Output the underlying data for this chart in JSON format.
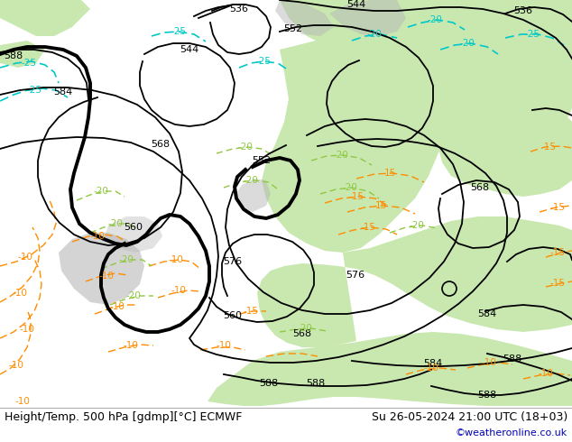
{
  "title_left": "Height/Temp. 500 hPa [gdmp][°C] ECMWF",
  "title_right": "Su 26-05-2024 21:00 UTC (18+03)",
  "watermark": "©weatheronline.co.uk",
  "bg_color": "#d8d8d8",
  "green_color": "#c8e8b0",
  "land_gray": "#b8b8b8",
  "sea_color": "#d8d8d8",
  "black": "#000000",
  "orange": "#ff8c00",
  "lime": "#90c840",
  "cyan": "#00c8c8",
  "footer_bg": "#ffffff",
  "watermark_color": "#0000bb",
  "text_color": "#000000",
  "footer_fontsize": 9,
  "label_fontsize": 8
}
